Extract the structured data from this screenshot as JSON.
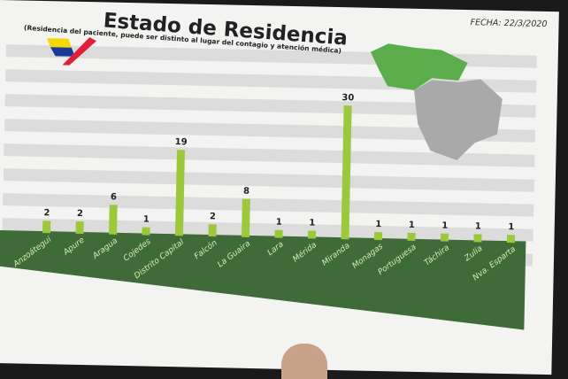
{
  "header": {
    "title": "Estado de Residencia",
    "subtitle": "(Residencia del paciente, puede ser distinto al lugar del contagio y atención médica)",
    "date": "FECHA: 22/3/2020"
  },
  "colors": {
    "bar": "#9cc93b",
    "band": "#3f6b39",
    "stripe": "#dcdcdc",
    "map_highlight": "#5aad4a",
    "map_gray": "#a9a9a9"
  },
  "chart_data": {
    "type": "bar",
    "title": "Estado de Residencia",
    "categories": [
      "Anzoátegui",
      "Apure",
      "Aragua",
      "Cojedes",
      "Distrito Capital",
      "Falcón",
      "La Guaira",
      "Lara",
      "Mérida",
      "Miranda",
      "Monagas",
      "Portuguesa",
      "Táchira",
      "Zulia",
      "Nva. Esparta"
    ],
    "values": [
      2,
      2,
      6,
      1,
      19,
      2,
      8,
      1,
      1,
      30,
      1,
      1,
      1,
      1,
      1
    ],
    "data_labels": true,
    "grid": false
  }
}
